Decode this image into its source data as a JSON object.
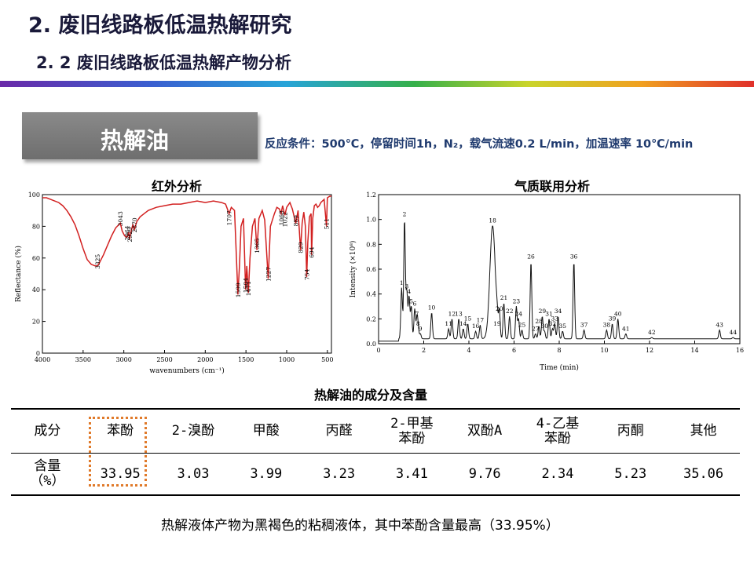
{
  "header": {
    "title": "2. 废旧线路板低温热解研究",
    "subtitle": "2. 2  废旧线路板低温热解产物分析"
  },
  "tag": "热解油",
  "conditions": "反应条件：500℃，停留时间1h，N₂，载气流速0.2 L/min，加温速率 10℃/min",
  "ir_panel": {
    "label": "红外分析"
  },
  "gc_panel": {
    "label": "气质联用分析"
  },
  "chart_data": [
    {
      "type": "line",
      "ylabel": "Reflectance (%)",
      "xlabel": "wavenumbers (cm⁻¹)",
      "xlim": [
        4000,
        450
      ],
      "ylim": [
        0,
        100
      ],
      "x_ticks": [
        "4000",
        "3500",
        "3000",
        "2500",
        "2000",
        "1500",
        "1000",
        "500"
      ],
      "y_ticks": [
        "0",
        "20",
        "40",
        "60",
        "80",
        "100"
      ],
      "color": "#d22020",
      "series": [
        {
          "x": [
            4000,
            3950,
            3900,
            3850,
            3800,
            3750,
            3700,
            3650,
            3600,
            3550,
            3500,
            3450,
            3400,
            3350,
            3325,
            3300,
            3250,
            3200,
            3150,
            3100,
            3043,
            3020,
            2990,
            2964,
            2940,
            2929,
            2910,
            2890,
            2870,
            2840,
            2800,
            2750,
            2700,
            2600,
            2500,
            2400,
            2300,
            2200,
            2100,
            2000,
            1900,
            1800,
            1750,
            1707,
            1680,
            1640,
            1599,
            1580,
            1560,
            1530,
            1504,
            1490,
            1471,
            1450,
            1420,
            1390,
            1365,
            1340,
            1300,
            1270,
            1227,
            1200,
            1150,
            1120,
            1090,
            1068,
            1050,
            1022,
            1000,
            960,
            930,
            889,
            860,
            829,
            810,
            790,
            770,
            754,
            740,
            720,
            700,
            694,
            680,
            660,
            640,
            620,
            600,
            580,
            560,
            540,
            511,
            500,
            470,
            450
          ],
          "y": [
            98,
            98,
            97,
            96,
            95,
            93,
            90,
            86,
            81,
            74,
            66,
            59,
            56,
            55,
            55,
            57,
            62,
            68,
            74,
            79,
            82,
            77,
            74,
            73,
            76,
            72,
            77,
            81,
            78,
            83,
            86,
            88,
            90,
            92,
            93,
            94,
            94,
            95,
            96,
            95,
            96,
            95,
            94,
            88,
            92,
            90,
            37,
            55,
            80,
            85,
            40,
            55,
            38,
            60,
            80,
            85,
            65,
            85,
            90,
            84,
            47,
            80,
            88,
            92,
            91,
            88,
            93,
            87,
            92,
            95,
            91,
            82,
            90,
            65,
            82,
            89,
            80,
            48,
            70,
            86,
            88,
            62,
            85,
            93,
            94,
            92,
            93,
            95,
            96,
            97,
            80,
            98,
            99,
            99
          ]
        }
      ],
      "annotations": [
        "3325",
        "3043",
        "2964",
        "2929",
        "2870",
        "1707",
        "1599",
        "1504",
        "1471",
        "1365",
        "1227",
        "1068",
        "1022",
        "889",
        "829",
        "754",
        "694",
        "511"
      ]
    },
    {
      "type": "line",
      "ylabel": "Intensity (×10⁸)",
      "xlabel": "Time (min)",
      "xlim": [
        0,
        16
      ],
      "ylim": [
        0,
        1.2
      ],
      "x_ticks": [
        "0",
        "2",
        "4",
        "6",
        "8",
        "10",
        "12",
        "14",
        "16"
      ],
      "y_ticks": [
        "0.0",
        "0.2",
        "0.4",
        "0.6",
        "0.8",
        "1.0",
        "1.2"
      ],
      "color": "#111111",
      "peak_labels": [
        "1",
        "2",
        "3",
        "4",
        "5",
        "6",
        "7",
        "8",
        "9",
        "10",
        "11",
        "12",
        "13",
        "14",
        "15",
        "16",
        "17",
        "18",
        "19",
        "20",
        "21",
        "22",
        "23",
        "24",
        "25",
        "26",
        "27",
        "28",
        "29",
        "30",
        "31",
        "32",
        "33",
        "34",
        "35",
        "36",
        "37",
        "38",
        "39",
        "40",
        "41",
        "42",
        "43",
        "44"
      ],
      "peaks": {
        "time": [
          1.02,
          1.15,
          1.25,
          1.35,
          1.45,
          1.6,
          1.7,
          1.75,
          1.85,
          2.35,
          3.1,
          3.25,
          3.55,
          3.75,
          3.95,
          4.3,
          4.5,
          5.05,
          5.25,
          5.35,
          5.55,
          5.8,
          6.1,
          6.2,
          6.35,
          6.75,
          6.95,
          7.1,
          7.25,
          7.35,
          7.55,
          7.7,
          7.8,
          7.95,
          8.15,
          8.65,
          9.1,
          10.1,
          10.35,
          10.6,
          10.95,
          12.1,
          15.1,
          15.7
        ],
        "intensity": [
          0.45,
          1.0,
          0.42,
          0.38,
          0.3,
          0.28,
          0.2,
          0.12,
          0.08,
          0.25,
          0.12,
          0.2,
          0.2,
          0.12,
          0.16,
          0.1,
          0.15,
          0.95,
          0.12,
          0.24,
          0.33,
          0.22,
          0.3,
          0.2,
          0.11,
          0.66,
          0.08,
          0.14,
          0.22,
          0.1,
          0.2,
          0.12,
          0.16,
          0.22,
          0.1,
          0.66,
          0.11,
          0.11,
          0.16,
          0.2,
          0.08,
          0.05,
          0.11,
          0.05
        ]
      }
    }
  ],
  "table": {
    "title": "热解油的成分及含量",
    "header": [
      "成分",
      "苯酚",
      "2-溴酚",
      "甲酸",
      "丙醛",
      "2-甲基\n苯酚",
      "双酚A",
      "4-乙基\n苯酚",
      "丙酮",
      "其他"
    ],
    "row": [
      "含量\n（%）",
      "33.95",
      "3.03",
      "3.99",
      "3.23",
      "3.41",
      "9.76",
      "2.34",
      "5.23",
      "35.06"
    ]
  },
  "conclusion": "热解液体产物为黑褐色的粘稠液体，其中苯酚含量最高（33.95%）"
}
